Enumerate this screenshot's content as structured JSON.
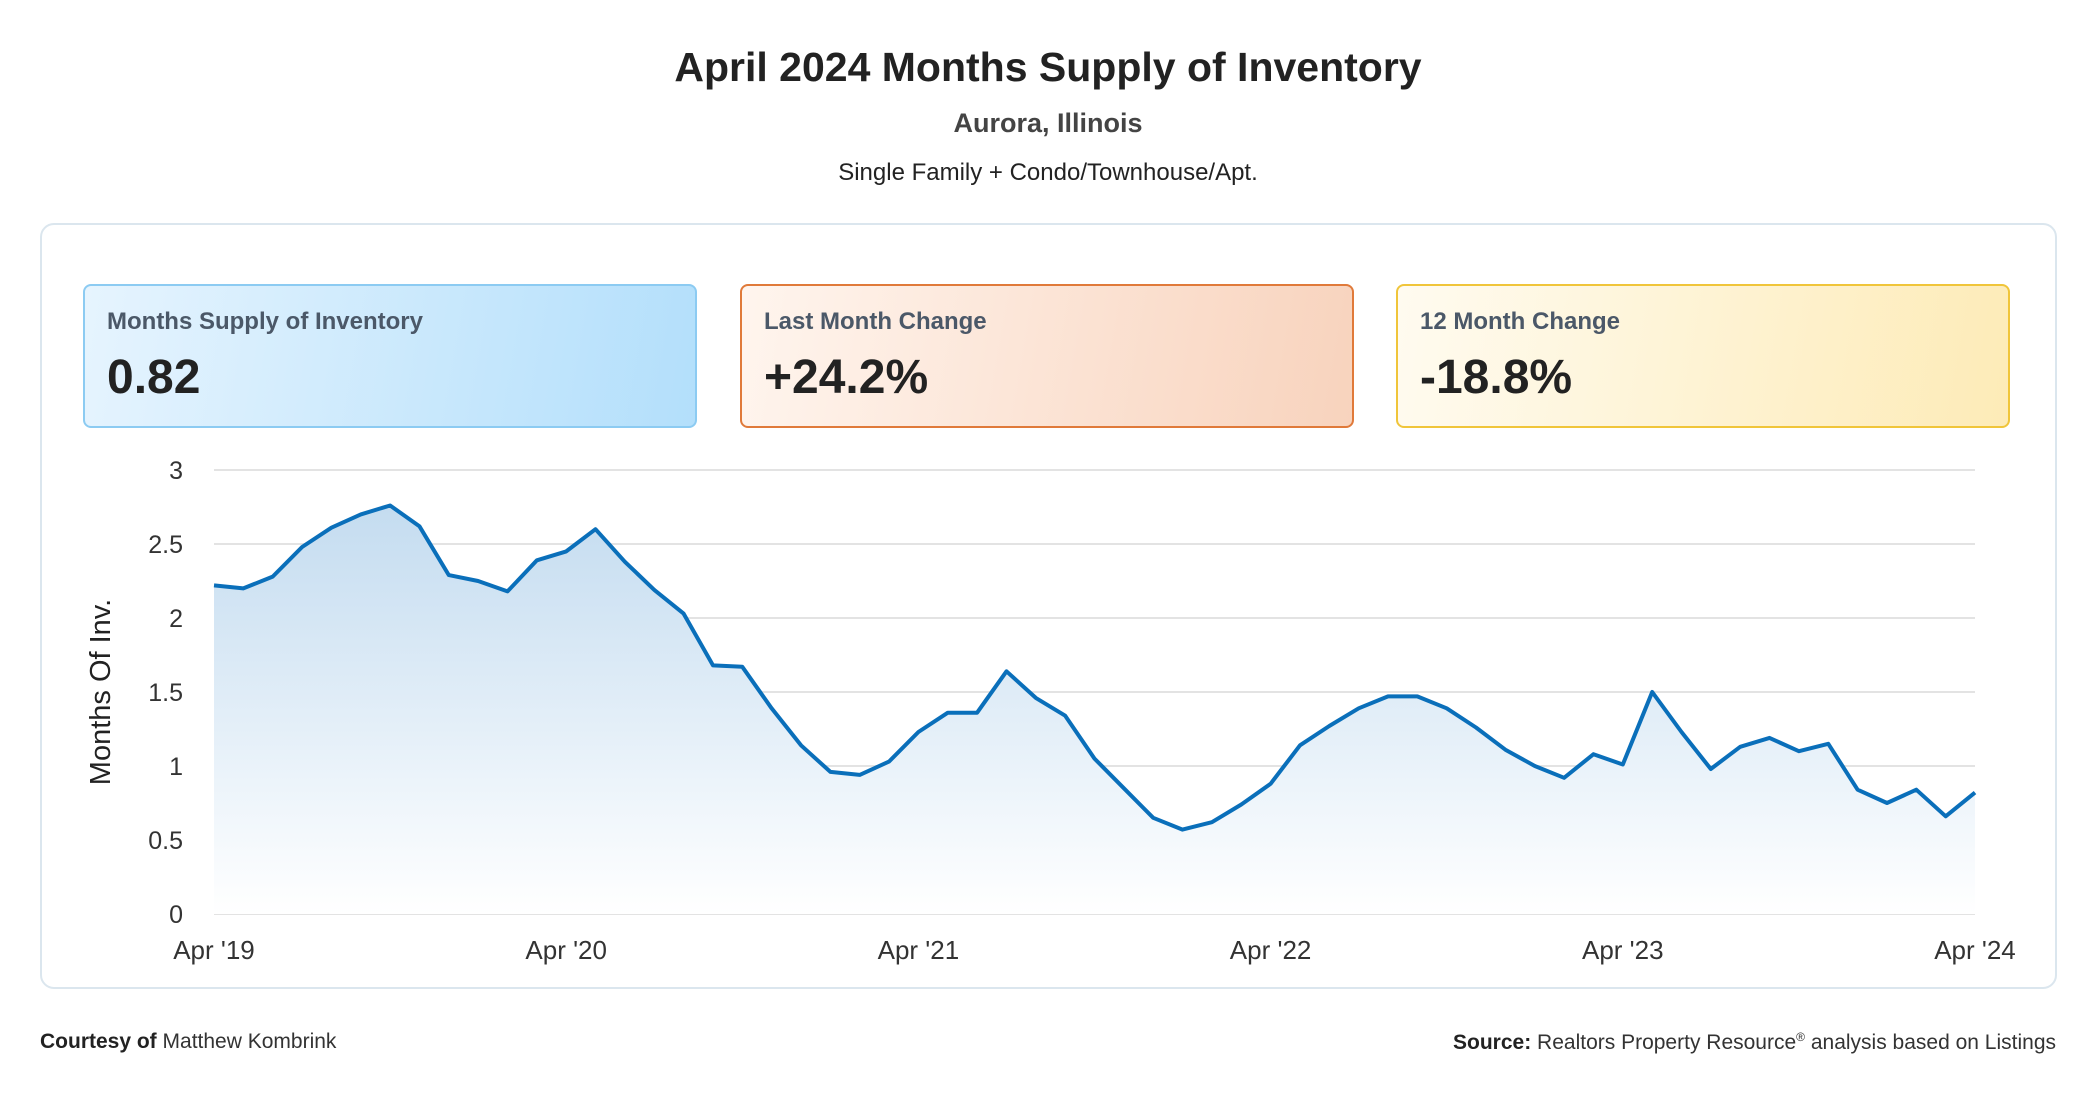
{
  "header": {
    "title": "April 2024 Months Supply of Inventory",
    "location": "Aurora, Illinois",
    "property_types": "Single Family + Condo/Townhouse/Apt."
  },
  "stats": [
    {
      "label": "Months Supply of Inventory",
      "value": "0.82",
      "color": "#b3dffb"
    },
    {
      "label": "Last Month Change",
      "value": "+24.2%",
      "color": "#f8d3bd"
    },
    {
      "label": "12 Month Change",
      "value": "-18.8%",
      "color": "#fdebb7"
    }
  ],
  "chart_data": {
    "type": "area",
    "title": "",
    "xlabel": "",
    "ylabel": "Months Of Inv.",
    "ylim": [
      0,
      3
    ],
    "yticks": [
      "0",
      "0.5",
      "1",
      "1.5",
      "2",
      "2.5",
      "3"
    ],
    "xticks": [
      "Apr '19",
      "Apr '20",
      "Apr '21",
      "Apr '22",
      "Apr '23",
      "Apr '24"
    ],
    "grid": true,
    "line_color": "#0a6fba",
    "x_start": "Apr 2019",
    "x_end": "Apr 2024",
    "x_interval": "monthly",
    "values": [
      2.22,
      2.2,
      2.28,
      2.48,
      2.61,
      2.7,
      2.76,
      2.62,
      2.29,
      2.25,
      2.18,
      2.39,
      2.45,
      2.6,
      2.38,
      2.19,
      2.03,
      1.68,
      1.67,
      1.39,
      1.14,
      0.96,
      0.94,
      1.03,
      1.23,
      1.36,
      1.36,
      1.64,
      1.46,
      1.34,
      1.05,
      0.85,
      0.65,
      0.57,
      0.62,
      0.74,
      0.88,
      1.14,
      1.27,
      1.39,
      1.47,
      1.47,
      1.39,
      1.26,
      1.11,
      1.0,
      0.92,
      1.08,
      1.01,
      1.5,
      1.23,
      0.98,
      1.13,
      1.19,
      1.1,
      1.15,
      0.84,
      0.75,
      0.84,
      0.66,
      0.82
    ]
  },
  "footer": {
    "courtesy_label": "Courtesy of",
    "courtesy_name": "Matthew Kombrink",
    "source_label": "Source:",
    "source_text": "Realtors Property Resource",
    "source_mark": "®",
    "source_suffix": "analysis based on Listings"
  }
}
